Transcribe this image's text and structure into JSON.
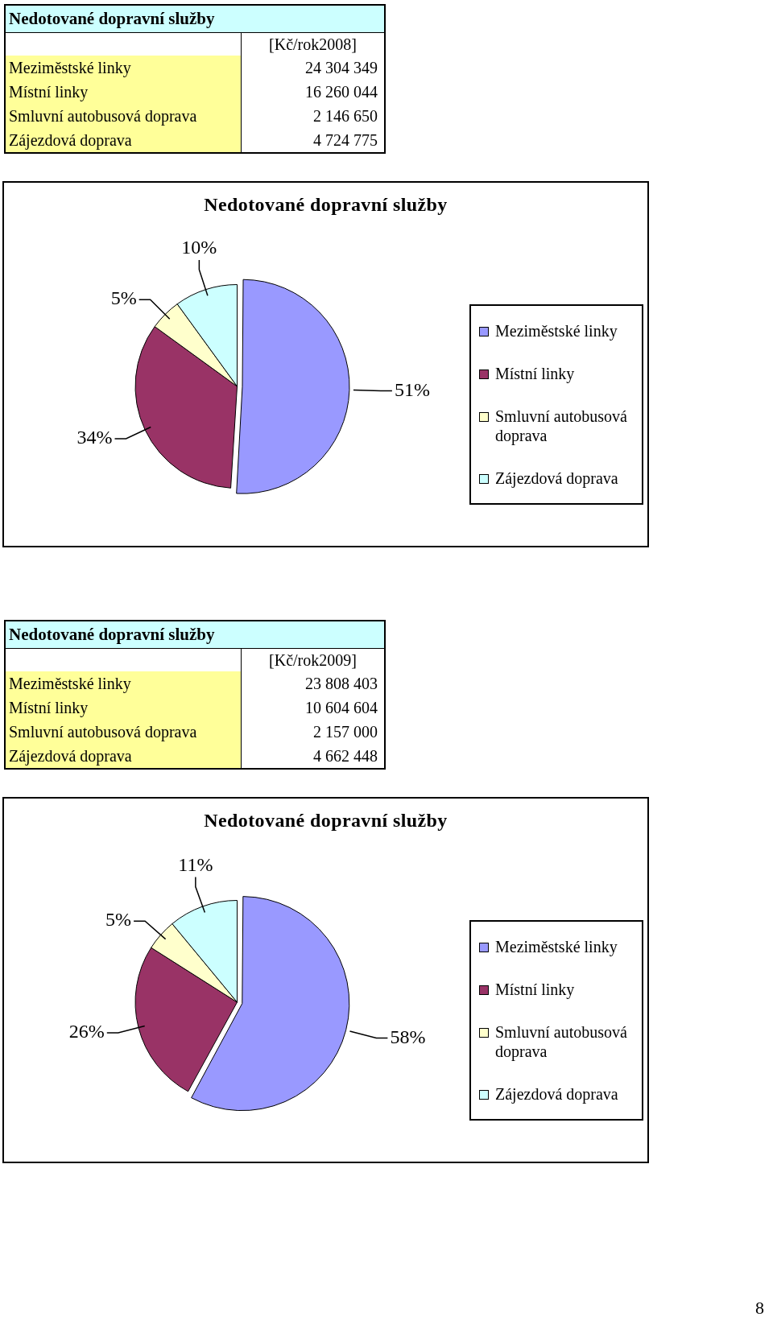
{
  "chart_data": [
    {
      "type": "other",
      "title": "Nedotované dopravní služby",
      "categories": [
        "Meziměstské linky",
        "Místní linky",
        "Smluvní autobusová doprava",
        "Zájezdová doprava"
      ],
      "values": [
        24304349,
        16260044,
        2146650,
        4724775
      ],
      "data_labels": true,
      "annotations": [
        "[Kč/rok2008]"
      ]
    },
    {
      "type": "pie",
      "title": "Nedotované dopravní služby",
      "categories": [
        "Meziměstské linky",
        "Místní linky",
        "Smluvní autobusová doprava",
        "Zájezdová doprava"
      ],
      "values": [
        51,
        34,
        5,
        10
      ],
      "colors": [
        "#9999ff",
        "#993366",
        "#ffffcc",
        "#ccffff"
      ],
      "value_labels": [
        "51%",
        "34%",
        "5%",
        "10%"
      ],
      "legend": "right"
    },
    {
      "type": "other",
      "title": "Nedotované dopravní služby",
      "categories": [
        "Meziměstské linky",
        "Místní linky",
        "Smluvní autobusová doprava",
        "Zájezdová doprava"
      ],
      "values": [
        23808403,
        10604604,
        2157000,
        4662448
      ],
      "data_labels": true,
      "annotations": [
        "[Kč/rok2009]"
      ]
    },
    {
      "type": "pie",
      "title": "Nedotované dopravní služby",
      "categories": [
        "Meziměstské linky",
        "Místní linky",
        "Smluvní autobusová doprava",
        "Zájezdová doprava"
      ],
      "values": [
        58,
        26,
        5,
        11
      ],
      "colors": [
        "#9999ff",
        "#993366",
        "#ffffcc",
        "#ccffff"
      ],
      "value_labels": [
        "58%",
        "26%",
        "5%",
        "11%"
      ],
      "legend": "right",
      "annotations": [
        "8"
      ]
    }
  ]
}
